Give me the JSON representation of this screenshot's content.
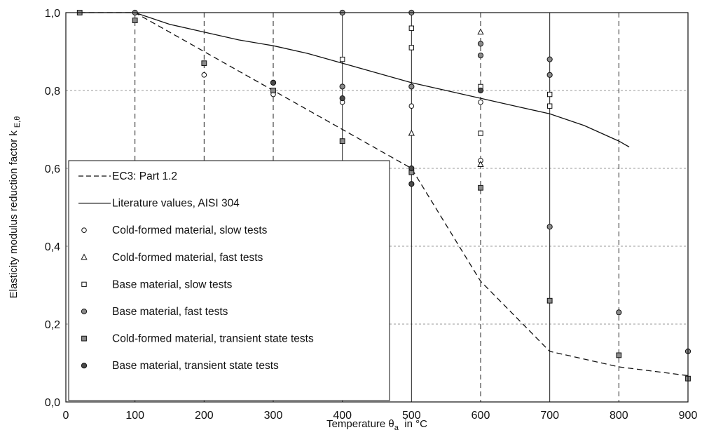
{
  "chart_data": {
    "type": "scatter",
    "title": "",
    "xlabel": {
      "main": "Temperature θ",
      "sub": "a",
      "suffix": "  in °C"
    },
    "ylabel": {
      "main": "Elasticity modulus reduction factor k",
      "sub": "E,θ"
    },
    "xlim": [
      0,
      900
    ],
    "ylim": [
      0,
      1
    ],
    "x_ticks": [
      0,
      100,
      200,
      300,
      400,
      500,
      600,
      700,
      800,
      900
    ],
    "x_tick_labels": [
      "0",
      "100",
      "200",
      "300",
      "400",
      "500",
      "600",
      "700",
      "800",
      "900"
    ],
    "y_ticks": [
      0,
      0.2,
      0.4,
      0.6,
      0.8,
      1.0
    ],
    "y_tick_labels": [
      "0,0",
      "0,2",
      "0,4",
      "0,6",
      "0,8",
      "1,0"
    ],
    "grid": true,
    "legend_position": "bottom-left",
    "lines": [
      {
        "name": "EC3: Part 1.2",
        "style": "dashed",
        "x": [
          20,
          100,
          200,
          300,
          400,
          500,
          600,
          700,
          800,
          900
        ],
        "y": [
          1.0,
          1.0,
          0.9,
          0.8,
          0.7,
          0.6,
          0.31,
          0.13,
          0.09,
          0.0675
        ]
      },
      {
        "name": "Literature values, AISI 304",
        "style": "solid",
        "x": [
          20,
          100,
          150,
          200,
          250,
          300,
          350,
          400,
          450,
          500,
          550,
          600,
          650,
          700,
          750,
          800,
          815
        ],
        "y": [
          1.0,
          1.0,
          0.97,
          0.95,
          0.93,
          0.915,
          0.895,
          0.87,
          0.845,
          0.82,
          0.8,
          0.78,
          0.76,
          0.74,
          0.71,
          0.67,
          0.655
        ]
      }
    ],
    "series": [
      {
        "name": "Cold-formed material, slow tests",
        "marker": "circle-open",
        "x": [
          200,
          300,
          400,
          500,
          600,
          600
        ],
        "y": [
          0.84,
          0.79,
          0.77,
          0.76,
          0.77,
          0.62
        ]
      },
      {
        "name": "Cold-formed material, fast tests",
        "marker": "triangle-open",
        "x": [
          500,
          600,
          600
        ],
        "y": [
          0.69,
          0.95,
          0.61
        ]
      },
      {
        "name": "Base material, slow tests",
        "marker": "square-open",
        "x": [
          400,
          500,
          500,
          600,
          600,
          700,
          700
        ],
        "y": [
          0.88,
          0.96,
          0.91,
          0.81,
          0.69,
          0.79,
          0.76
        ]
      },
      {
        "name": "Base material, fast tests",
        "marker": "circle-gray",
        "x": [
          100,
          300,
          400,
          400,
          500,
          500,
          600,
          600,
          700,
          700,
          700,
          800,
          900
        ],
        "y": [
          1.0,
          0.82,
          1.0,
          0.81,
          1.0,
          0.81,
          0.92,
          0.89,
          0.88,
          0.84,
          0.45,
          0.23,
          0.13
        ]
      },
      {
        "name": "Cold-formed material, transient state tests",
        "marker": "square-gray",
        "x": [
          20,
          100,
          200,
          300,
          400,
          500,
          600,
          700,
          800,
          900
        ],
        "y": [
          1.0,
          0.98,
          0.87,
          0.8,
          0.67,
          0.59,
          0.55,
          0.26,
          0.12,
          0.06
        ]
      },
      {
        "name": "Base material, transient state tests",
        "marker": "circle-dark",
        "x": [
          300,
          400,
          500,
          500,
          600
        ],
        "y": [
          0.82,
          0.78,
          0.6,
          0.56,
          0.8
        ]
      }
    ],
    "vertical_lines": [
      {
        "x": 100,
        "style": "dashed"
      },
      {
        "x": 200,
        "style": "dashed"
      },
      {
        "x": 300,
        "style": "dashed"
      },
      {
        "x": 400,
        "style": "solid"
      },
      {
        "x": 500,
        "style": "solid"
      },
      {
        "x": 600,
        "style": "dashed"
      },
      {
        "x": 700,
        "style": "solid"
      },
      {
        "x": 800,
        "style": "dashed"
      },
      {
        "x": 900,
        "style": "dashed"
      }
    ]
  }
}
